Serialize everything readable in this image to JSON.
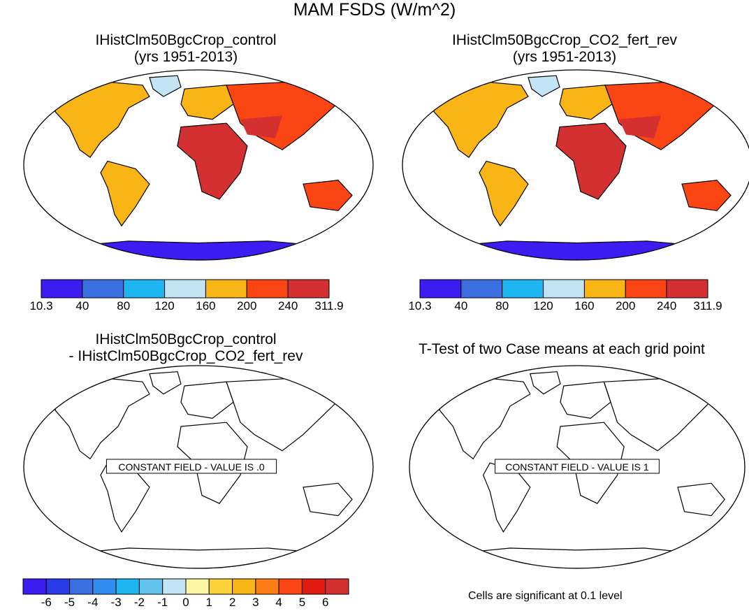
{
  "figure": {
    "title": "MAM FSDS (W/m^2)"
  },
  "panels": [
    {
      "id": "p1",
      "title_line1": "IHistClm50BgcCrop_control",
      "title_line2": "(yrs 1951-2013)",
      "filled": true,
      "label": ""
    },
    {
      "id": "p2",
      "title_line1": "IHistClm50BgcCrop_CO2_fert_rev",
      "title_line2": "(yrs 1951-2013)",
      "filled": true,
      "label": ""
    },
    {
      "id": "p3",
      "title_line1": "IHistClm50BgcCrop_control",
      "title_line2": "- IHistClm50BgcCrop_CO2_fert_rev",
      "filled": false,
      "label": "CONSTANT FIELD - VALUE IS .0"
    },
    {
      "id": "p4",
      "title_line1": "T-Test of two Case means at each grid point",
      "title_line2": "",
      "filled": false,
      "label": "CONSTANT FIELD - VALUE IS 1"
    }
  ],
  "colorbar_top": {
    "labels": [
      "10.3",
      "40",
      "80",
      "120",
      "160",
      "200",
      "240",
      "311.9"
    ],
    "colors": [
      "#3d1cf2",
      "#3b6fe0",
      "#1eb6f2",
      "#c3e4f4",
      "#f9b416",
      "#fb4512",
      "#d53031"
    ]
  },
  "colorbar_diff": {
    "labels": [
      "-6",
      "-5",
      "-4",
      "-3",
      "-2",
      "-1",
      "0",
      "1",
      "2",
      "3",
      "4",
      "5",
      "6"
    ],
    "colors": [
      "#3d1cf2",
      "#2a3ae8",
      "#3b6fe0",
      "#2f8ef0",
      "#1eb6f2",
      "#62c4ef",
      "#c3e4f4",
      "#fdf6a4",
      "#fcd23a",
      "#f9b416",
      "#fb7d16",
      "#fb4512",
      "#e01a0e",
      "#d53031"
    ]
  },
  "footnote": "Cells are significant at 0.1 level",
  "chart_data": {
    "type": "heatmap",
    "title": "MAM FSDS (W/m^2)",
    "variable": "FSDS",
    "season": "MAM",
    "units": "W/m^2",
    "projection": "Robinson",
    "contour_levels_mean": [
      10.3,
      40,
      80,
      120,
      160,
      200,
      240,
      311.9
    ],
    "contour_levels_diff": [
      -6,
      -5,
      -4,
      -3,
      -2,
      -1,
      0,
      1,
      2,
      3,
      4,
      5,
      6
    ],
    "difference_constant_value": 0,
    "ttest_constant_value": 1,
    "significance_level": 0.1
  }
}
